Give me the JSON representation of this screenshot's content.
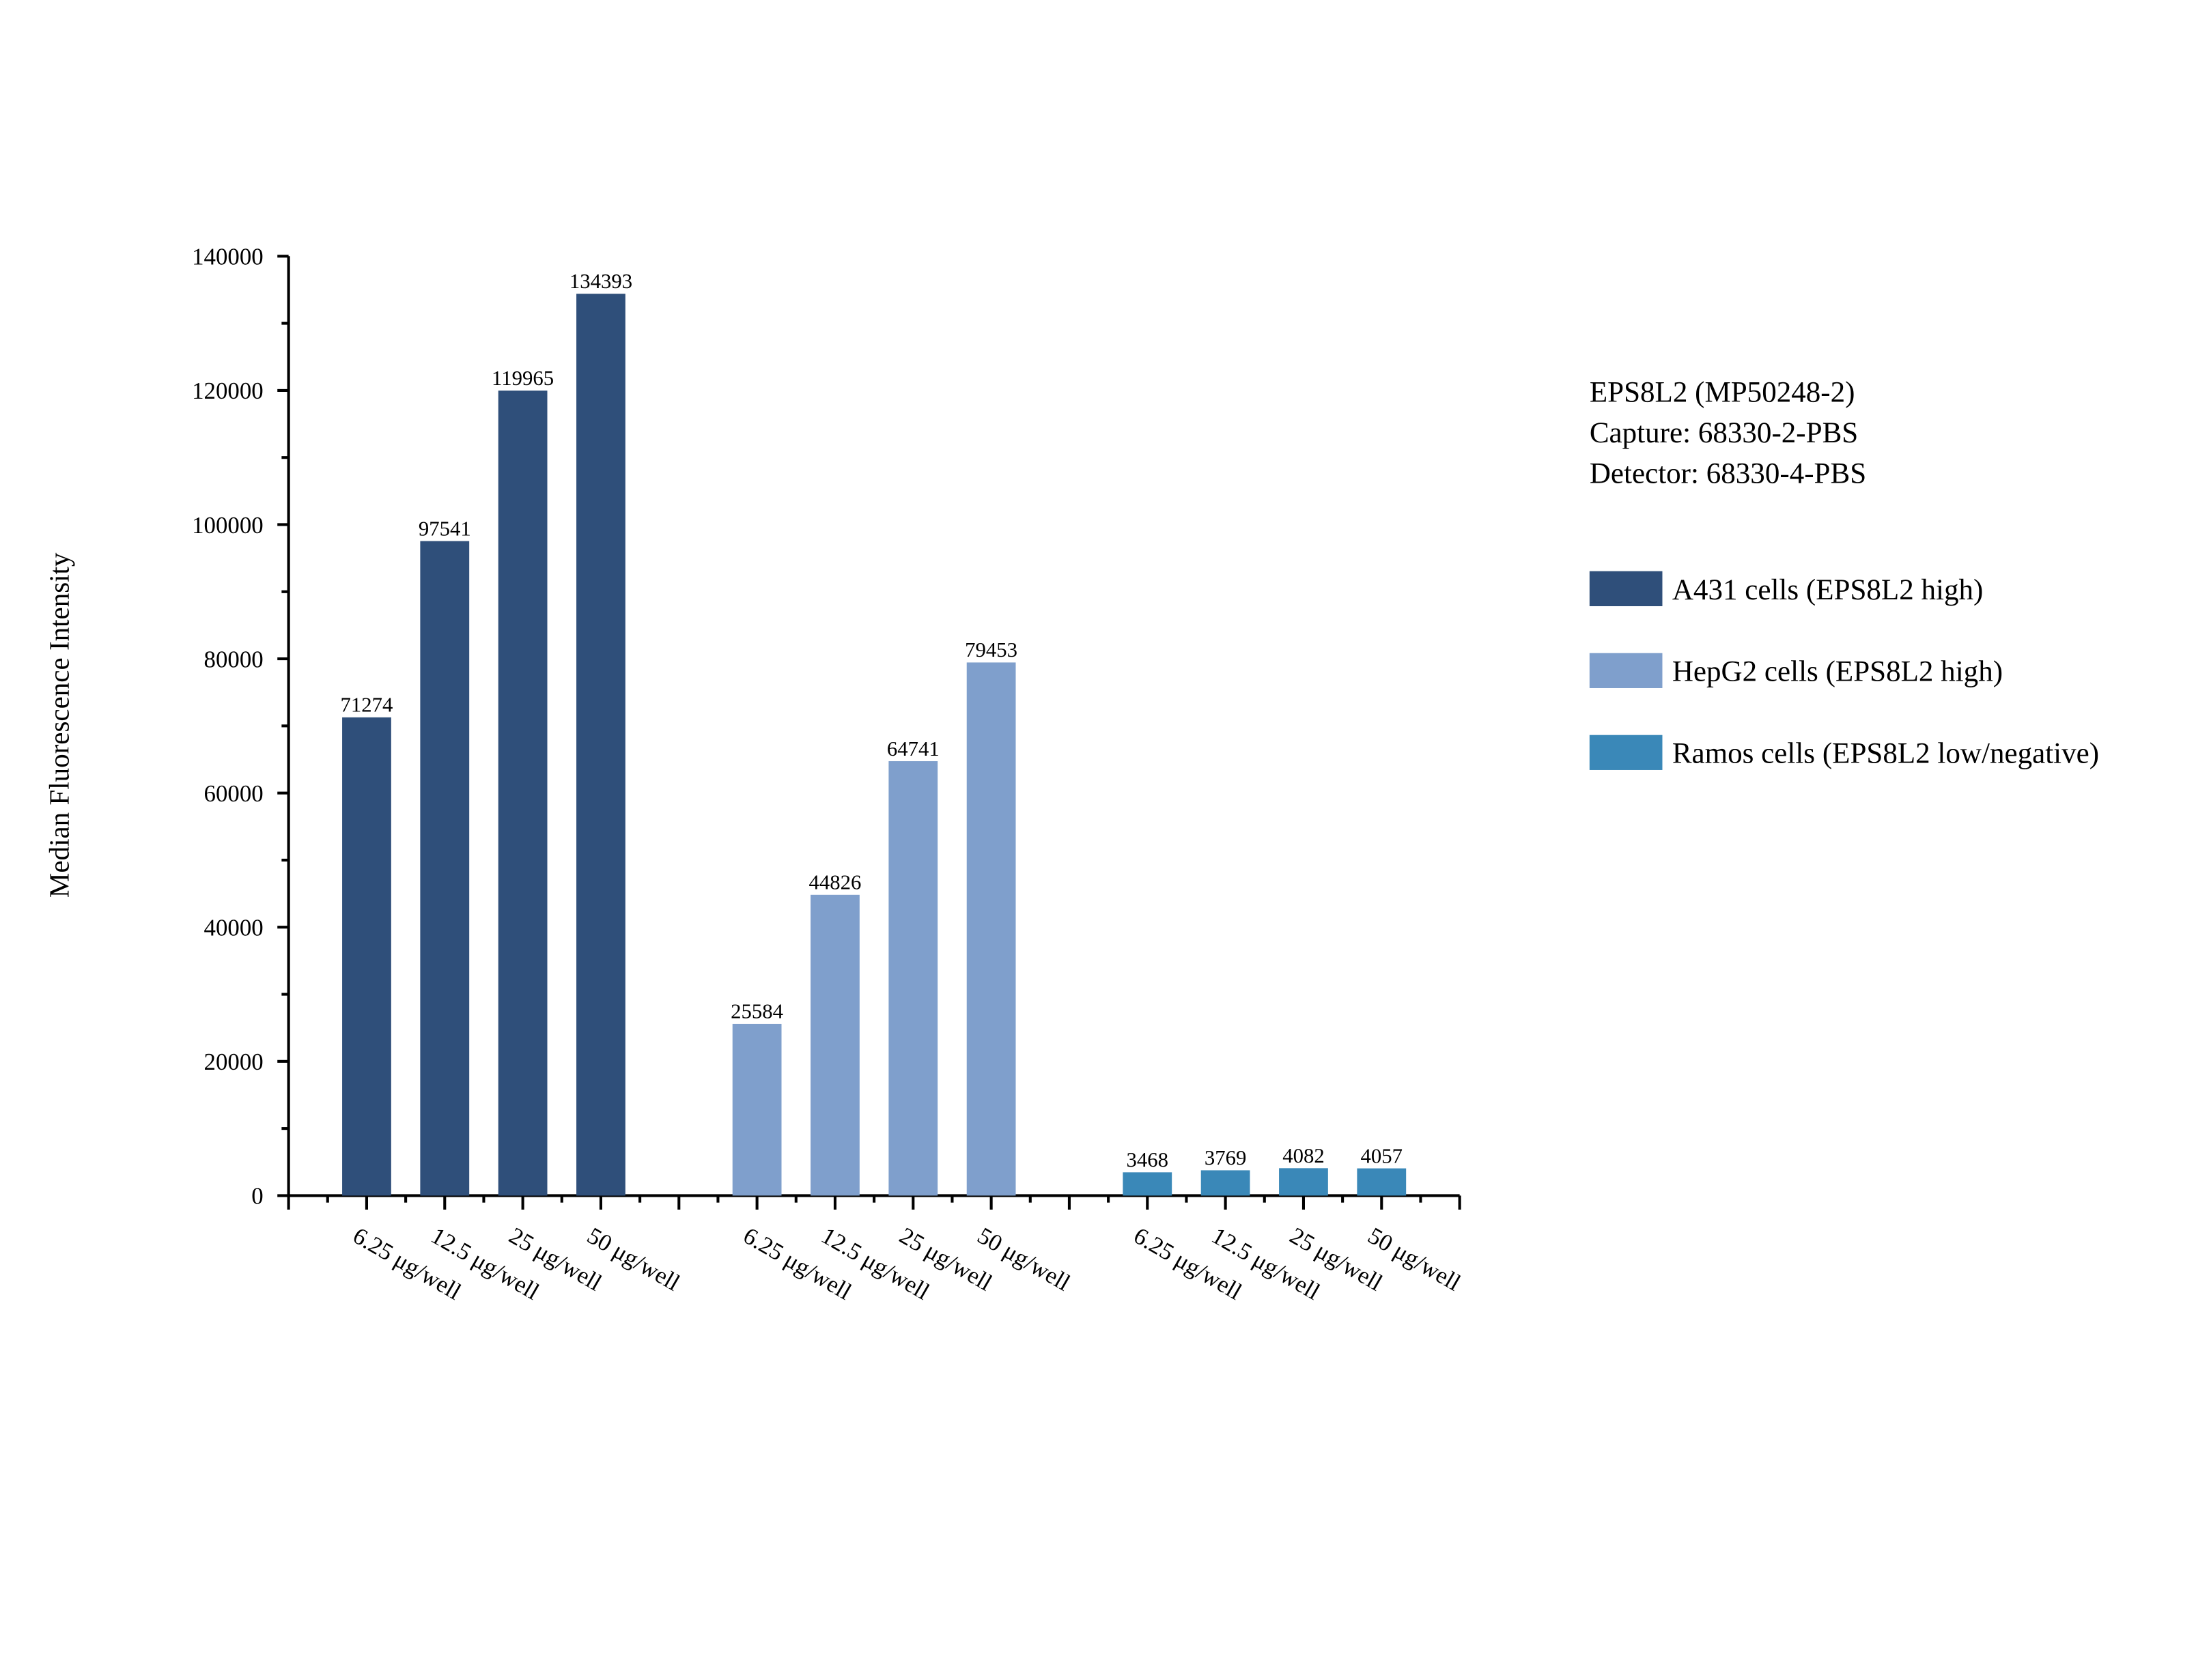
{
  "chart_data": {
    "type": "bar",
    "ylabel": "Median Fluorescence Intensity",
    "xlabel": "",
    "ylim": [
      0,
      140000
    ],
    "yticks": [
      "0",
      "20000",
      "40000",
      "60000",
      "80000",
      "100000",
      "120000",
      "140000"
    ],
    "categories": [
      "6.25 μg/well",
      "12.5 μg/well",
      "25 μg/well",
      "50 μg/well"
    ],
    "series": [
      {
        "name": "A431 cells (EPS8L2 high)",
        "color": "#2f4f7a",
        "values": [
          71274,
          97541,
          119965,
          134393
        ]
      },
      {
        "name": "HepG2 cells (EPS8L2 high)",
        "color": "#7f9fcc",
        "values": [
          25584,
          44826,
          64741,
          79453
        ]
      },
      {
        "name": "Ramos cells (EPS8L2 low/negative)",
        "color": "#3a88b8",
        "values": [
          3468,
          3769,
          4082,
          4057
        ]
      }
    ],
    "annotation": [
      "EPS8L2 (MP50248-2)",
      "Capture: 68330-2-PBS",
      "Detector: 68330-4-PBS"
    ],
    "legend_position": "right",
    "grid": false
  }
}
